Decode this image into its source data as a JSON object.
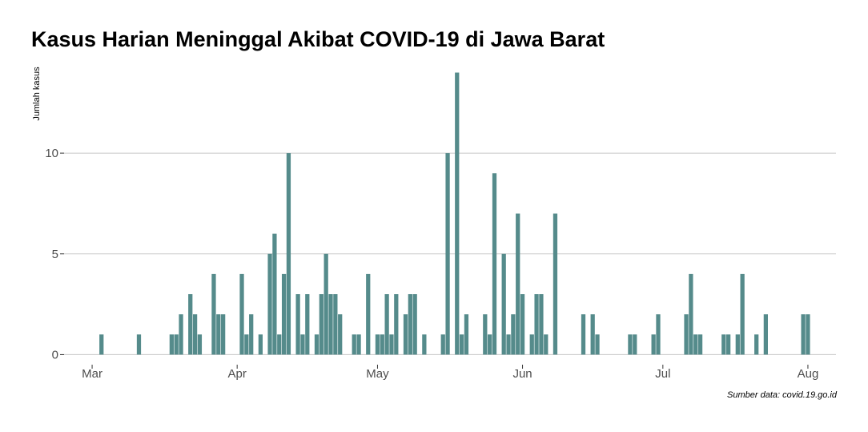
{
  "chart_data": {
    "type": "bar",
    "title": "Kasus Harian Meninggal Akibat COVID-19 di Jawa Barat",
    "ylabel": "Jumlah kasus",
    "xlabel": "",
    "caption": "Sumber data: covid.19.go.id",
    "bar_color": "#558b8b",
    "grid_color": "#c8c8c8",
    "grid": "horizontal",
    "x_range": [
      "2020-02-24",
      "2020-08-07"
    ],
    "ylim": [
      -0.5,
      14.3
    ],
    "yticks": [
      0,
      5,
      10
    ],
    "ytick_labels": [
      "0",
      "5",
      "10"
    ],
    "xticks": [
      "2020-03-01",
      "2020-04-01",
      "2020-05-01",
      "2020-06-01",
      "2020-07-01",
      "2020-08-01"
    ],
    "xtick_labels": [
      "Mar",
      "Apr",
      "May",
      "Jun",
      "Jul",
      "Aug"
    ],
    "x": [
      "2020-03-03",
      "2020-03-11",
      "2020-03-18",
      "2020-03-19",
      "2020-03-20",
      "2020-03-22",
      "2020-03-23",
      "2020-03-24",
      "2020-03-27",
      "2020-03-28",
      "2020-03-29",
      "2020-04-02",
      "2020-04-03",
      "2020-04-04",
      "2020-04-06",
      "2020-04-08",
      "2020-04-09",
      "2020-04-10",
      "2020-04-11",
      "2020-04-12",
      "2020-04-14",
      "2020-04-15",
      "2020-04-16",
      "2020-04-18",
      "2020-04-19",
      "2020-04-20",
      "2020-04-21",
      "2020-04-22",
      "2020-04-23",
      "2020-04-26",
      "2020-04-27",
      "2020-04-29",
      "2020-05-01",
      "2020-05-02",
      "2020-05-03",
      "2020-05-04",
      "2020-05-05",
      "2020-05-07",
      "2020-05-08",
      "2020-05-09",
      "2020-05-11",
      "2020-05-15",
      "2020-05-16",
      "2020-05-18",
      "2020-05-19",
      "2020-05-20",
      "2020-05-24",
      "2020-05-25",
      "2020-05-26",
      "2020-05-28",
      "2020-05-29",
      "2020-05-30",
      "2020-05-31",
      "2020-06-01",
      "2020-06-03",
      "2020-06-04",
      "2020-06-05",
      "2020-06-06",
      "2020-06-08",
      "2020-06-14",
      "2020-06-16",
      "2020-06-17",
      "2020-06-24",
      "2020-06-25",
      "2020-06-29",
      "2020-06-30",
      "2020-07-06",
      "2020-07-07",
      "2020-07-08",
      "2020-07-09",
      "2020-07-14",
      "2020-07-15",
      "2020-07-17",
      "2020-07-18",
      "2020-07-21",
      "2020-07-23",
      "2020-07-31",
      "2020-08-01"
    ],
    "values": [
      1,
      1,
      1,
      1,
      2,
      3,
      2,
      1,
      4,
      2,
      2,
      4,
      1,
      2,
      1,
      5,
      6,
      1,
      4,
      10,
      3,
      1,
      3,
      1,
      3,
      5,
      3,
      3,
      2,
      1,
      1,
      4,
      1,
      1,
      3,
      1,
      3,
      2,
      3,
      3,
      1,
      1,
      10,
      14,
      1,
      2,
      2,
      1,
      9,
      5,
      1,
      2,
      7,
      3,
      1,
      3,
      3,
      1,
      7,
      2,
      2,
      1,
      1,
      1,
      1,
      2,
      2,
      4,
      1,
      1,
      1,
      1,
      1,
      4,
      1,
      2,
      2,
      2
    ]
  }
}
